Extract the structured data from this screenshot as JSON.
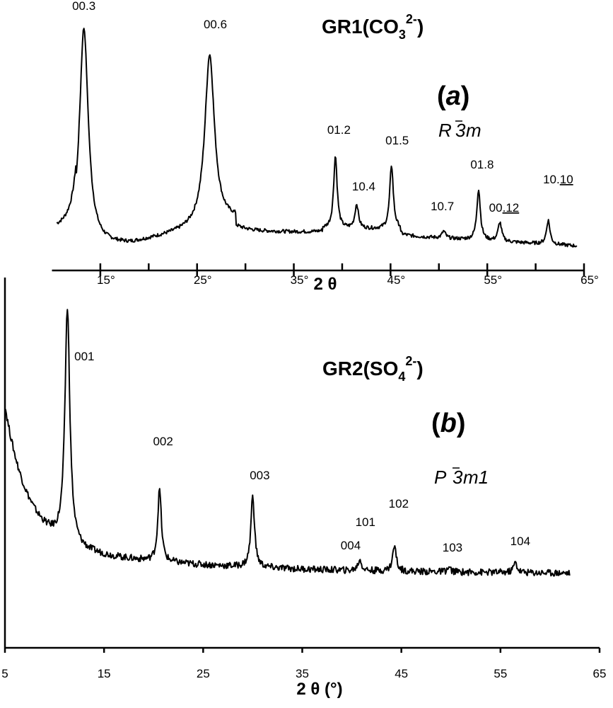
{
  "chart_data": [
    {
      "type": "line",
      "panel": "(a)",
      "title_main": "GR1(CO",
      "title_sub": "3",
      "title_sup": "2-",
      "title_end": ")",
      "tag_paren_open": "(",
      "tag_letter": "a",
      "tag_paren_close": ")",
      "space_group": {
        "letter": "R",
        "bar_digit": "3",
        "rest": "m"
      },
      "xlabel": "2 θ",
      "xlim": [
        10,
        65
      ],
      "ylim": [
        0,
        100
      ],
      "x_ticks": [
        15,
        25,
        35,
        45,
        55,
        65
      ],
      "x_tick_labels": [
        "15°",
        "25°",
        "35°",
        "45°",
        "55°",
        "65°"
      ],
      "peaks": [
        {
          "label": "00.3",
          "x": 13.3,
          "y": 100
        },
        {
          "label": "00.6",
          "x": 26.3,
          "y": 88
        },
        {
          "label": "01.2",
          "x": 39.3,
          "y": 42
        },
        {
          "label": "10.4",
          "x": 41.5,
          "y": 20
        },
        {
          "label": "01.5",
          "x": 45.1,
          "y": 38
        },
        {
          "label": "10.7",
          "x": 50.5,
          "y": 8
        },
        {
          "label": "01.8",
          "x": 54.1,
          "y": 27
        },
        {
          "label": "00.12",
          "x": 56.3,
          "y": 12
        },
        {
          "label": "10.10",
          "x": 61.3,
          "y": 13
        }
      ]
    },
    {
      "type": "line",
      "panel": "(b)",
      "title_main": "GR2(SO",
      "title_sub": "4",
      "title_sup": "2-",
      "title_end": ")",
      "tag_paren_open": "(",
      "tag_letter": "b",
      "tag_paren_close": ")",
      "space_group": {
        "letter": "P",
        "bar_digit": "3",
        "rest": "m1"
      },
      "xlabel": "2 θ (°)",
      "xlim": [
        5,
        65
      ],
      "ylim": [
        0,
        100
      ],
      "x_ticks": [
        5,
        15,
        25,
        35,
        45,
        55,
        65
      ],
      "x_tick_labels": [
        "5",
        "15",
        "25",
        "35",
        "45",
        "55",
        "65"
      ],
      "peaks": [
        {
          "label": "001",
          "x": 11.3,
          "y": 100
        },
        {
          "label": "002",
          "x": 20.6,
          "y": 35
        },
        {
          "label": "003",
          "x": 30.0,
          "y": 33
        },
        {
          "label": "004",
          "x": 39.6,
          "y": 6
        },
        {
          "label": "101",
          "x": 40.8,
          "y": 10
        },
        {
          "label": "102",
          "x": 44.3,
          "y": 15
        },
        {
          "label": "103",
          "x": 49.8,
          "y": 7
        },
        {
          "label": "104",
          "x": 56.5,
          "y": 9
        }
      ]
    }
  ]
}
